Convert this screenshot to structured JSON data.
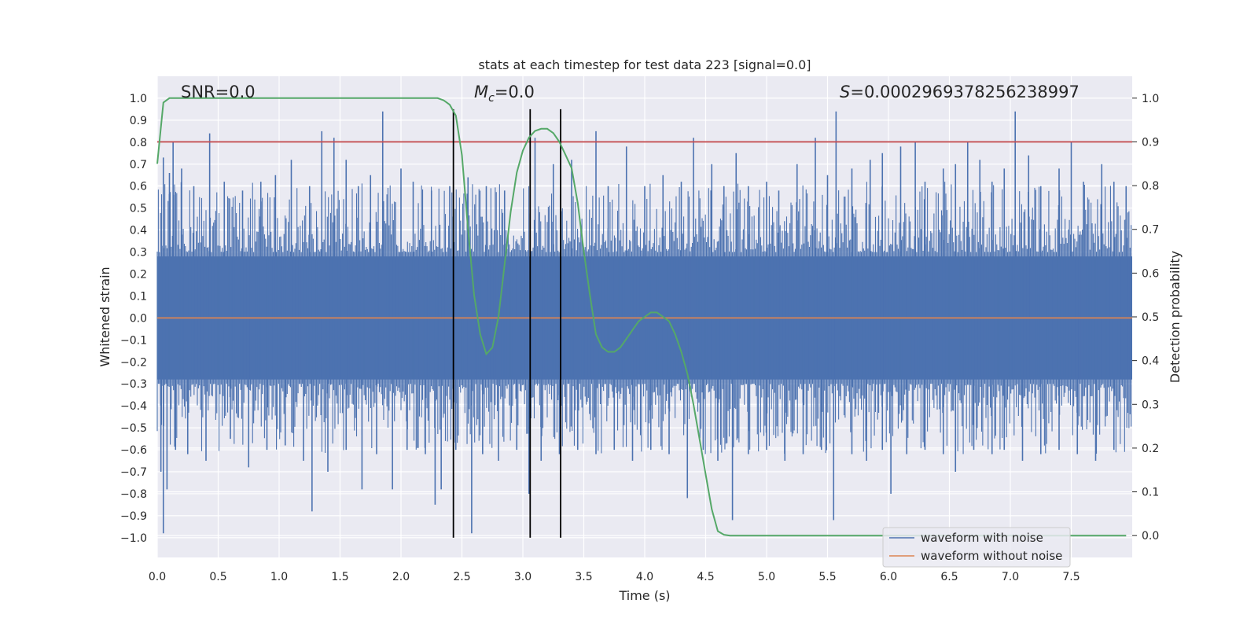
{
  "chart_data": {
    "type": "line",
    "title": "stats at each timestep for test data 223 [signal=0.0]",
    "xlabel": "Time (s)",
    "ylabel": "Whitened strain",
    "y2label": "Detection probability",
    "xlim": [
      0.0,
      8.0
    ],
    "ylim": [
      -1.09,
      1.1
    ],
    "y2lim": [
      -0.05,
      1.05
    ],
    "xticks": [
      0.0,
      0.5,
      1.0,
      1.5,
      2.0,
      2.5,
      3.0,
      3.5,
      4.0,
      4.5,
      5.0,
      5.5,
      6.0,
      6.5,
      7.0,
      7.5
    ],
    "yticks": [
      -1.0,
      -0.9,
      -0.8,
      -0.7,
      -0.6,
      -0.5,
      -0.4,
      -0.3,
      -0.2,
      -0.1,
      0.0,
      0.1,
      0.2,
      0.3,
      0.4,
      0.5,
      0.6,
      0.7,
      0.8,
      0.9,
      1.0
    ],
    "y2ticks": [
      0.0,
      0.1,
      0.2,
      0.3,
      0.4,
      0.5,
      0.6,
      0.7,
      0.8,
      0.9,
      1.0
    ],
    "annotations": {
      "snr": "SNR=0.0",
      "mc_symbol": "M",
      "mc_sub": "c",
      "mc_value": "=0.0",
      "s_symbol": "S",
      "s_value": "=0.0002969378256238997"
    },
    "noise_series": {
      "name": "waveform with noise",
      "color": "#4c72b0",
      "baseline_envelope": [
        -0.28,
        0.28
      ],
      "spikes_up": [
        [
          0.05,
          0.73
        ],
        [
          0.1,
          0.66
        ],
        [
          0.13,
          0.8
        ],
        [
          0.2,
          0.68
        ],
        [
          0.3,
          0.6
        ],
        [
          0.43,
          0.84
        ],
        [
          0.55,
          0.62
        ],
        [
          0.7,
          0.58
        ],
        [
          0.85,
          0.62
        ],
        [
          0.97,
          0.65
        ],
        [
          1.1,
          0.72
        ],
        [
          1.25,
          0.6
        ],
        [
          1.35,
          0.85
        ],
        [
          1.45,
          0.82
        ],
        [
          1.55,
          0.72
        ],
        [
          1.65,
          0.6
        ],
        [
          1.75,
          0.65
        ],
        [
          1.85,
          0.94
        ],
        [
          2.0,
          0.68
        ],
        [
          2.1,
          0.62
        ],
        [
          2.25,
          0.58
        ],
        [
          2.4,
          0.6
        ],
        [
          2.55,
          0.64
        ],
        [
          2.7,
          0.6
        ],
        [
          2.85,
          0.58
        ],
        [
          3.1,
          0.82
        ],
        [
          3.25,
          0.7
        ],
        [
          3.4,
          0.72
        ],
        [
          3.6,
          0.85
        ],
        [
          3.7,
          0.6
        ],
        [
          3.85,
          0.78
        ],
        [
          4.0,
          0.6
        ],
        [
          4.15,
          0.65
        ],
        [
          4.3,
          0.62
        ],
        [
          4.4,
          0.82
        ],
        [
          4.55,
          0.7
        ],
        [
          4.65,
          0.6
        ],
        [
          4.75,
          0.75
        ],
        [
          4.85,
          0.6
        ],
        [
          5.0,
          0.62
        ],
        [
          5.1,
          0.58
        ],
        [
          5.25,
          0.7
        ],
        [
          5.4,
          0.82
        ],
        [
          5.5,
          0.65
        ],
        [
          5.57,
          0.94
        ],
        [
          5.7,
          0.68
        ],
        [
          5.85,
          0.72
        ],
        [
          5.95,
          0.75
        ],
        [
          6.1,
          0.78
        ],
        [
          6.22,
          0.8
        ],
        [
          6.3,
          0.62
        ],
        [
          6.45,
          0.68
        ],
        [
          6.55,
          0.7
        ],
        [
          6.65,
          0.8
        ],
        [
          6.75,
          0.72
        ],
        [
          6.85,
          0.62
        ],
        [
          6.95,
          0.68
        ],
        [
          7.04,
          0.94
        ],
        [
          7.15,
          0.74
        ],
        [
          7.25,
          0.6
        ],
        [
          7.4,
          0.68
        ],
        [
          7.5,
          0.8
        ],
        [
          7.6,
          0.62
        ],
        [
          7.75,
          0.7
        ],
        [
          7.85,
          0.62
        ],
        [
          7.95,
          0.6
        ]
      ],
      "spikes_down": [
        [
          0.03,
          -0.7
        ],
        [
          0.05,
          -0.98
        ],
        [
          0.08,
          -0.78
        ],
        [
          0.15,
          -0.6
        ],
        [
          0.25,
          -0.62
        ],
        [
          0.4,
          -0.65
        ],
        [
          0.6,
          -0.55
        ],
        [
          0.75,
          -0.68
        ],
        [
          0.9,
          -0.6
        ],
        [
          1.05,
          -0.58
        ],
        [
          1.2,
          -0.65
        ],
        [
          1.27,
          -0.88
        ],
        [
          1.4,
          -0.7
        ],
        [
          1.55,
          -0.6
        ],
        [
          1.68,
          -0.78
        ],
        [
          1.8,
          -0.62
        ],
        [
          1.93,
          -0.78
        ],
        [
          2.05,
          -0.6
        ],
        [
          2.2,
          -0.62
        ],
        [
          2.28,
          -0.85
        ],
        [
          2.33,
          -0.78
        ],
        [
          2.45,
          -0.6
        ],
        [
          2.58,
          -0.98
        ],
        [
          2.67,
          -0.62
        ],
        [
          2.8,
          -0.65
        ],
        [
          2.95,
          -0.6
        ],
        [
          3.05,
          -0.8
        ],
        [
          3.15,
          -0.65
        ],
        [
          3.3,
          -0.62
        ],
        [
          3.45,
          -0.6
        ],
        [
          3.6,
          -0.62
        ],
        [
          3.75,
          -0.6
        ],
        [
          3.9,
          -0.65
        ],
        [
          4.05,
          -0.6
        ],
        [
          4.2,
          -0.62
        ],
        [
          4.35,
          -0.82
        ],
        [
          4.48,
          -0.6
        ],
        [
          4.6,
          -0.65
        ],
        [
          4.72,
          -0.92
        ],
        [
          4.85,
          -0.62
        ],
        [
          5.0,
          -0.6
        ],
        [
          5.15,
          -0.65
        ],
        [
          5.3,
          -0.62
        ],
        [
          5.45,
          -0.6
        ],
        [
          5.55,
          -0.92
        ],
        [
          5.7,
          -0.62
        ],
        [
          5.82,
          -0.65
        ],
        [
          5.95,
          -0.6
        ],
        [
          6.02,
          -0.8
        ],
        [
          6.15,
          -0.62
        ],
        [
          6.3,
          -0.6
        ],
        [
          6.45,
          -0.62
        ],
        [
          6.55,
          -0.7
        ],
        [
          6.7,
          -0.6
        ],
        [
          6.85,
          -0.62
        ],
        [
          6.95,
          -0.6
        ],
        [
          7.1,
          -0.65
        ],
        [
          7.25,
          -0.62
        ],
        [
          7.4,
          -0.6
        ],
        [
          7.55,
          -0.62
        ],
        [
          7.7,
          -0.65
        ],
        [
          7.85,
          -0.6
        ]
      ]
    },
    "clean_series": {
      "name": "waveform without noise",
      "color": "#dd8452",
      "x": [
        0.0,
        8.0
      ],
      "y": [
        0.0,
        0.0
      ]
    },
    "probability_series": {
      "color": "#55a868",
      "x": [
        0.0,
        0.05,
        0.1,
        0.15,
        0.5,
        1.0,
        1.5,
        2.0,
        2.2,
        2.3,
        2.35,
        2.4,
        2.45,
        2.5,
        2.55,
        2.6,
        2.65,
        2.7,
        2.75,
        2.8,
        2.85,
        2.9,
        2.95,
        3.0,
        3.05,
        3.1,
        3.15,
        3.2,
        3.25,
        3.3,
        3.35,
        3.4,
        3.45,
        3.5,
        3.55,
        3.6,
        3.65,
        3.7,
        3.75,
        3.8,
        3.85,
        3.9,
        3.95,
        4.0,
        4.05,
        4.1,
        4.15,
        4.2,
        4.25,
        4.3,
        4.35,
        4.4,
        4.45,
        4.5,
        4.55,
        4.6,
        4.65,
        4.7,
        5.0,
        6.0,
        7.0,
        7.95
      ],
      "y": [
        0.85,
        0.99,
        1.0,
        1.0,
        1.0,
        1.0,
        1.0,
        1.0,
        1.0,
        1.0,
        0.995,
        0.985,
        0.96,
        0.87,
        0.7,
        0.55,
        0.46,
        0.415,
        0.43,
        0.5,
        0.62,
        0.74,
        0.83,
        0.88,
        0.91,
        0.925,
        0.93,
        0.93,
        0.92,
        0.9,
        0.87,
        0.84,
        0.76,
        0.65,
        0.55,
        0.46,
        0.43,
        0.42,
        0.42,
        0.43,
        0.45,
        0.47,
        0.49,
        0.5,
        0.51,
        0.51,
        0.5,
        0.49,
        0.46,
        0.42,
        0.37,
        0.3,
        0.22,
        0.14,
        0.06,
        0.01,
        0.002,
        0.0,
        0.0,
        0.0,
        0.0,
        0.0
      ]
    },
    "threshold": {
      "color": "#c44e52",
      "y2": 0.9
    },
    "vlines": {
      "color": "#000000",
      "x": [
        2.43,
        3.06,
        3.31
      ],
      "ymin": -1.0,
      "ymax": 0.95
    },
    "legend": {
      "placement": "lower-right",
      "entries": [
        "waveform with noise",
        "waveform without noise"
      ]
    },
    "grid": true
  }
}
